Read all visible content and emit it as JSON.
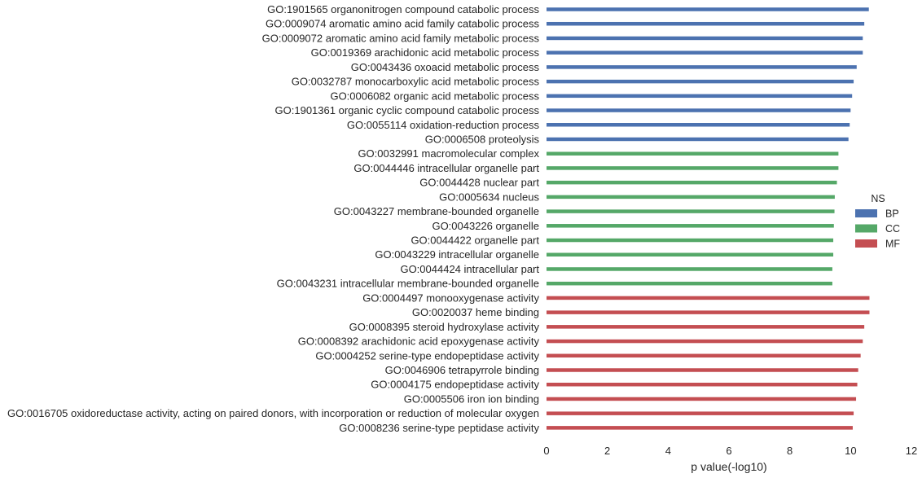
{
  "chart_data": {
    "type": "bar",
    "orientation": "horizontal",
    "xlabel": "p value(-log10)",
    "ylabel": "",
    "xlim": [
      0,
      12
    ],
    "xticks": [
      0,
      2,
      4,
      6,
      8,
      10,
      12
    ],
    "grid": false,
    "legend": {
      "title": "NS",
      "placement": "right",
      "entries": [
        {
          "name": "BP",
          "color": "#4c72b0"
        },
        {
          "name": "CC",
          "color": "#55a868"
        },
        {
          "name": "MF",
          "color": "#c44e52"
        }
      ]
    },
    "bars": [
      {
        "label": "GO:1901565 organonitrogen compound catabolic process",
        "value": 10.6,
        "ns": "BP"
      },
      {
        "label": "GO:0009074 aromatic amino acid family catabolic process",
        "value": 10.45,
        "ns": "BP"
      },
      {
        "label": "GO:0009072 aromatic amino acid family metabolic process",
        "value": 10.4,
        "ns": "BP"
      },
      {
        "label": "GO:0019369 arachidonic acid metabolic process",
        "value": 10.4,
        "ns": "BP"
      },
      {
        "label": "GO:0043436 oxoacid metabolic process",
        "value": 10.2,
        "ns": "BP"
      },
      {
        "label": "GO:0032787 monocarboxylic acid metabolic process",
        "value": 10.1,
        "ns": "BP"
      },
      {
        "label": "GO:0006082 organic acid metabolic process",
        "value": 10.05,
        "ns": "BP"
      },
      {
        "label": "GO:1901361 organic cyclic compound catabolic process",
        "value": 10.0,
        "ns": "BP"
      },
      {
        "label": "GO:0055114 oxidation-reduction process",
        "value": 9.97,
        "ns": "BP"
      },
      {
        "label": "GO:0006508 proteolysis",
        "value": 9.93,
        "ns": "BP"
      },
      {
        "label": "GO:0032991 macromolecular complex",
        "value": 9.6,
        "ns": "CC"
      },
      {
        "label": "GO:0044446 intracellular organelle part",
        "value": 9.6,
        "ns": "CC"
      },
      {
        "label": "GO:0044428 nuclear part",
        "value": 9.55,
        "ns": "CC"
      },
      {
        "label": "GO:0005634 nucleus",
        "value": 9.48,
        "ns": "CC"
      },
      {
        "label": "GO:0043227 membrane-bounded organelle",
        "value": 9.47,
        "ns": "CC"
      },
      {
        "label": "GO:0043226 organelle",
        "value": 9.45,
        "ns": "CC"
      },
      {
        "label": "GO:0044422 organelle part",
        "value": 9.43,
        "ns": "CC"
      },
      {
        "label": "GO:0043229 intracellular organelle",
        "value": 9.43,
        "ns": "CC"
      },
      {
        "label": "GO:0044424 intracellular part",
        "value": 9.4,
        "ns": "CC"
      },
      {
        "label": "GO:0043231 intracellular membrane-bounded organelle",
        "value": 9.4,
        "ns": "CC"
      },
      {
        "label": "GO:0004497 monooxygenase activity",
        "value": 10.62,
        "ns": "MF"
      },
      {
        "label": "GO:0020037 heme binding",
        "value": 10.62,
        "ns": "MF"
      },
      {
        "label": "GO:0008395 steroid hydroxylase activity",
        "value": 10.45,
        "ns": "MF"
      },
      {
        "label": "GO:0008392 arachidonic acid epoxygenase activity",
        "value": 10.4,
        "ns": "MF"
      },
      {
        "label": "GO:0004252 serine-type endopeptidase activity",
        "value": 10.33,
        "ns": "MF"
      },
      {
        "label": "GO:0046906 tetrapyrrole binding",
        "value": 10.25,
        "ns": "MF"
      },
      {
        "label": "GO:0004175 endopeptidase activity",
        "value": 10.22,
        "ns": "MF"
      },
      {
        "label": "GO:0005506 iron ion binding",
        "value": 10.18,
        "ns": "MF"
      },
      {
        "label": "GO:0016705 oxidoreductase activity, acting on paired donors, with incorporation or reduction of molecular oxygen",
        "value": 10.1,
        "ns": "MF"
      },
      {
        "label": "GO:0008236 serine-type peptidase activity",
        "value": 10.07,
        "ns": "MF"
      }
    ]
  }
}
